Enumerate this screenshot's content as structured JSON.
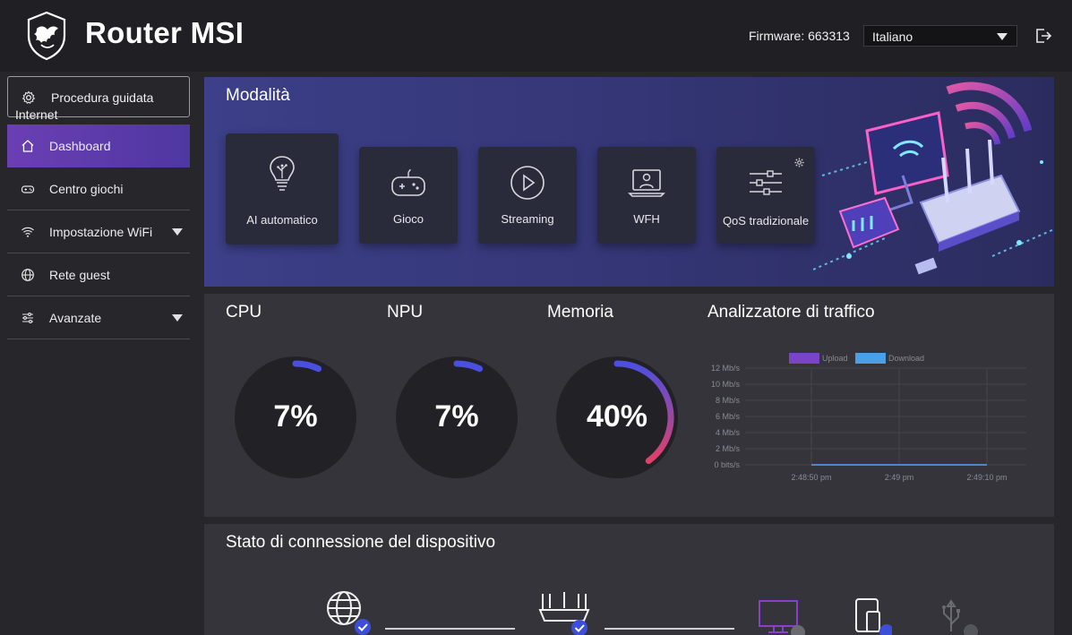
{
  "header": {
    "title": "Router MSI",
    "firmware_label": "Firmware: 663313",
    "language": "Italiano",
    "icons": {
      "logo": "msi-dragon-shield-logo",
      "logout": "logout-icon"
    }
  },
  "sidebar": {
    "wizard": {
      "line1": "Procedura guidata",
      "line2": "Internet",
      "icon": "gear-icon"
    },
    "items": [
      {
        "label": "Dashboard",
        "icon": "home-icon",
        "active": true
      },
      {
        "label": "Centro giochi",
        "icon": "gamepad-icon"
      },
      {
        "label": "Impostazione WiFi",
        "icon": "wifi-icon",
        "expandable": true
      },
      {
        "label": "Rete guest",
        "icon": "globe-icon"
      },
      {
        "label": "Avanzate",
        "icon": "sliders-icon",
        "expandable": true
      }
    ]
  },
  "modes": {
    "title": "Modalità",
    "cards": [
      {
        "label": "AI automatico",
        "icon": "ai-bulb-icon",
        "selected": true
      },
      {
        "label": "Gioco",
        "icon": "gamepad-icon"
      },
      {
        "label": "Streaming",
        "icon": "play-icon"
      },
      {
        "label": "WFH",
        "icon": "laptop-user-icon"
      },
      {
        "label": "QoS tradizionale",
        "icon": "sliders-icon",
        "settings_icon": "gear-icon"
      }
    ]
  },
  "stats": {
    "cpu": {
      "label": "CPU",
      "value": "7%",
      "fraction": 0.07
    },
    "npu": {
      "label": "NPU",
      "value": "7%",
      "fraction": 0.07
    },
    "memory": {
      "label": "Memoria",
      "value": "40%",
      "fraction": 0.4
    },
    "traffic_title": "Analizzatore di traffico"
  },
  "chart_data": {
    "type": "line",
    "title": "",
    "legend_placement": "top",
    "series": [
      {
        "name": "Upload",
        "color": "#7a44c9",
        "values": [
          0,
          0,
          0
        ]
      },
      {
        "name": "Download",
        "color": "#4aa0e6",
        "values": [
          0,
          0,
          0
        ]
      }
    ],
    "x": [
      "2:48:50 pm",
      "2:49 pm",
      "2:49:10 pm"
    ],
    "y_ticks": [
      "12 Mb/s",
      "10 Mb/s",
      "8 Mb/s",
      "6 Mb/s",
      "4 Mb/s",
      "2 Mb/s",
      "0 bits/s"
    ],
    "ylim": [
      0,
      12
    ],
    "grid": true
  },
  "connection": {
    "title": "Stato di connessione del dispositivo",
    "icons": [
      "globe-icon",
      "router-icon",
      "monitor-icon",
      "tablet-icon",
      "usb-icon"
    ]
  },
  "colors": {
    "accent": "#6b3fb4",
    "gauge_blue": "#4b4fe0",
    "gauge_red": "#e0406a",
    "check_blue": "#3d4fd8"
  }
}
